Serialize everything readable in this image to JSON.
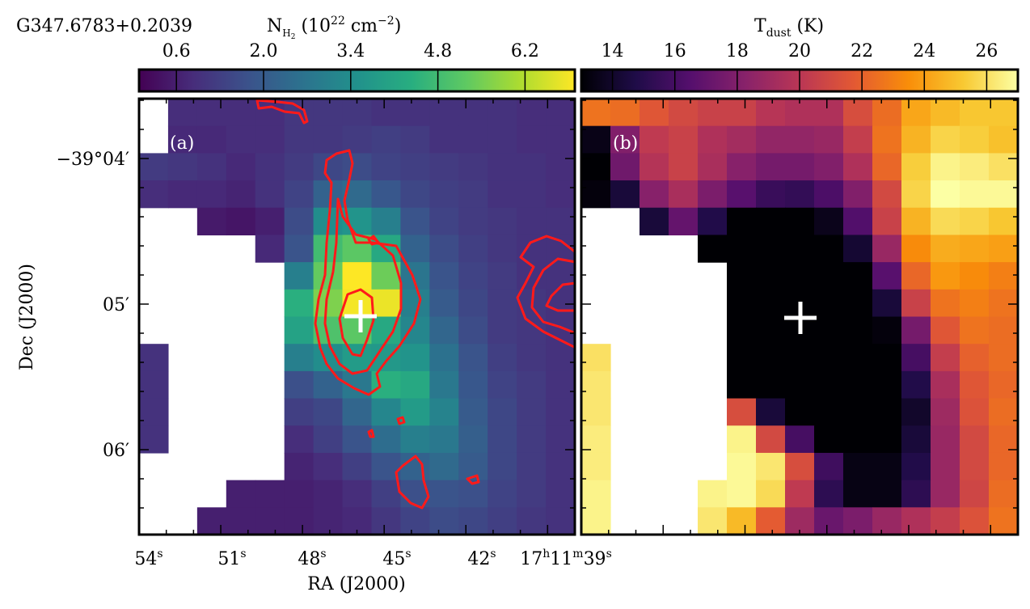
{
  "source_name": "G347.6783+0.2039",
  "chart_data": [
    {
      "type": "heatmap",
      "panel_label": "(a)",
      "quantity": "N_H2",
      "colorbar": {
        "label_main": "N",
        "label_sub": "H",
        "label_sub2": "2",
        "label_units_pre": " (10",
        "label_units_exp": "22",
        "label_units_mid": " cm",
        "label_units_exp2": "−2",
        "label_units_post": ")",
        "ticks": [
          "0.6",
          "2.0",
          "3.4",
          "4.8",
          "6.2"
        ],
        "tick_values": [
          0.6,
          2.0,
          3.4,
          4.8,
          6.2
        ],
        "range": [
          0.0,
          7.0
        ],
        "colormap": "viridis"
      },
      "xlabel": "RA (J2000)",
      "ylabel": "Dec (J2000)",
      "xticks": [
        {
          "main": "54",
          "sup": "s"
        },
        {
          "main": "51",
          "sup": "s"
        },
        {
          "main": "48",
          "sup": "s"
        },
        {
          "main": "45",
          "sup": "s"
        },
        {
          "main": "42",
          "sup": "s"
        },
        {
          "main": "17",
          "sup": "h",
          "main2": "11",
          "sup2": "m",
          "main3": "39",
          "sup3": "s"
        }
      ],
      "yticks": [
        {
          "main": "−39°04′"
        },
        {
          "main": "05′"
        },
        {
          "main": "06′"
        }
      ],
      "grid": [
        [
          null,
          0.9,
          0.9,
          0.9,
          0.9,
          1.1,
          1.1,
          1.1,
          1.0,
          1.0,
          1.0,
          1.0,
          1.0,
          0.9,
          0.9
        ],
        [
          null,
          0.8,
          0.8,
          0.9,
          0.9,
          1.1,
          1.1,
          1.2,
          1.3,
          1.2,
          1.0,
          1.0,
          1.0,
          0.9,
          0.9
        ],
        [
          1.2,
          1.1,
          1.0,
          0.8,
          1.0,
          1.2,
          1.5,
          1.6,
          1.4,
          1.3,
          1.2,
          1.1,
          1.0,
          1.0,
          0.9
        ],
        [
          0.9,
          0.8,
          0.8,
          0.7,
          1.0,
          1.4,
          2.2,
          2.4,
          1.9,
          1.5,
          1.3,
          1.2,
          1.0,
          1.0,
          0.9
        ],
        [
          null,
          null,
          0.5,
          0.4,
          0.6,
          1.6,
          3.4,
          3.6,
          3.0,
          1.8,
          1.4,
          1.2,
          1.1,
          1.0,
          1.0
        ],
        [
          null,
          null,
          null,
          null,
          0.8,
          1.8,
          4.8,
          5.2,
          4.2,
          2.2,
          1.6,
          1.3,
          1.1,
          1.0,
          1.0
        ],
        [
          null,
          null,
          null,
          null,
          null,
          3.0,
          5.3,
          7.0,
          5.4,
          2.7,
          1.8,
          1.4,
          1.2,
          1.0,
          1.0
        ],
        [
          null,
          null,
          null,
          null,
          null,
          4.4,
          5.6,
          6.9,
          6.8,
          3.0,
          2.0,
          1.5,
          1.2,
          1.1,
          1.0
        ],
        [
          null,
          null,
          null,
          null,
          null,
          4.0,
          5.0,
          5.2,
          4.2,
          3.2,
          2.3,
          1.6,
          1.2,
          1.1,
          1.0
        ],
        [
          1.0,
          null,
          null,
          null,
          null,
          3.0,
          3.4,
          3.8,
          3.7,
          3.6,
          2.6,
          1.8,
          1.3,
          1.1,
          1.0
        ],
        [
          1.0,
          null,
          null,
          null,
          null,
          1.7,
          2.2,
          2.8,
          4.4,
          4.2,
          2.8,
          1.9,
          1.4,
          1.2,
          1.0
        ],
        [
          1.0,
          null,
          null,
          null,
          null,
          1.3,
          1.5,
          2.3,
          3.2,
          3.8,
          3.1,
          2.0,
          1.5,
          1.2,
          1.0
        ],
        [
          1.0,
          null,
          null,
          null,
          null,
          0.9,
          1.3,
          1.8,
          2.5,
          3.0,
          2.8,
          2.1,
          1.5,
          1.2,
          1.0
        ],
        [
          null,
          null,
          null,
          null,
          null,
          0.7,
          0.9,
          1.3,
          1.8,
          2.2,
          2.4,
          2.0,
          1.5,
          1.2,
          1.0
        ],
        [
          null,
          null,
          null,
          0.6,
          0.6,
          0.6,
          0.7,
          0.9,
          1.3,
          1.7,
          1.8,
          1.7,
          1.4,
          1.2,
          1.0
        ],
        [
          null,
          null,
          0.6,
          0.6,
          0.6,
          0.6,
          0.7,
          0.8,
          1.1,
          1.4,
          1.6,
          1.5,
          1.3,
          1.1,
          1.0
        ]
      ],
      "contours": "red",
      "marker": "+"
    },
    {
      "type": "heatmap",
      "panel_label": "(b)",
      "quantity": "T_dust",
      "colorbar": {
        "label_main": "T",
        "label_sub": "dust",
        "label_units_post": " (K)",
        "ticks": [
          "14",
          "16",
          "18",
          "20",
          "22",
          "24",
          "26"
        ],
        "tick_values": [
          14,
          16,
          18,
          20,
          22,
          24,
          26
        ],
        "range": [
          13.0,
          27.0
        ],
        "colormap": "inferno"
      },
      "grid": [
        [
          22.6,
          22.4,
          21.6,
          21.0,
          20.6,
          20.6,
          19.9,
          19.6,
          19.6,
          21.2,
          22.4,
          24.2,
          24.8,
          25.2,
          25.2
        ],
        [
          13.5,
          18.0,
          20.2,
          20.6,
          19.6,
          19.2,
          18.6,
          18.6,
          18.8,
          20.4,
          22.6,
          24.6,
          25.6,
          25.4,
          25.0
        ],
        [
          13.0,
          17.4,
          19.8,
          20.6,
          19.4,
          18.2,
          17.6,
          17.6,
          18.0,
          19.6,
          22.2,
          25.4,
          26.6,
          26.4,
          26.0
        ],
        [
          13.2,
          14.4,
          18.2,
          19.4,
          17.8,
          16.6,
          15.6,
          15.4,
          16.2,
          18.0,
          21.0,
          25.6,
          27.0,
          26.8,
          26.8
        ],
        [
          null,
          null,
          14.4,
          17.0,
          14.8,
          13.0,
          13.0,
          13.0,
          13.6,
          16.4,
          20.6,
          24.6,
          25.8,
          25.6,
          25.2
        ],
        [
          null,
          null,
          null,
          null,
          13.0,
          13.0,
          13.0,
          13.0,
          13.0,
          14.2,
          18.8,
          23.4,
          24.4,
          24.2,
          24.0
        ],
        [
          null,
          null,
          null,
          null,
          null,
          13.0,
          13.0,
          13.0,
          13.0,
          13.0,
          16.6,
          22.2,
          23.8,
          23.4,
          23.0
        ],
        [
          null,
          null,
          null,
          null,
          null,
          13.0,
          13.0,
          13.0,
          13.0,
          13.0,
          14.4,
          20.6,
          22.6,
          23.0,
          22.6
        ],
        [
          null,
          null,
          null,
          null,
          null,
          13.0,
          13.0,
          13.0,
          13.0,
          13.0,
          13.2,
          17.6,
          21.6,
          22.6,
          22.4
        ],
        [
          26.0,
          null,
          null,
          null,
          null,
          13.0,
          13.0,
          13.0,
          13.0,
          13.0,
          13.0,
          16.0,
          20.4,
          22.0,
          22.4
        ],
        [
          26.2,
          null,
          null,
          null,
          null,
          13.0,
          13.0,
          13.0,
          13.0,
          13.0,
          13.0,
          14.8,
          19.4,
          21.6,
          22.2
        ],
        [
          26.2,
          null,
          null,
          null,
          null,
          21.2,
          14.4,
          13.0,
          13.0,
          13.0,
          13.0,
          14.0,
          19.0,
          21.4,
          22.4
        ],
        [
          26.4,
          null,
          null,
          null,
          null,
          26.6,
          21.0,
          16.0,
          13.0,
          13.0,
          13.0,
          14.4,
          18.8,
          21.0,
          22.2
        ],
        [
          26.4,
          null,
          null,
          null,
          null,
          26.8,
          26.2,
          21.2,
          15.8,
          13.4,
          13.4,
          14.8,
          18.8,
          21.0,
          22.2
        ],
        [
          26.6,
          null,
          null,
          null,
          26.6,
          26.8,
          25.8,
          20.2,
          15.2,
          13.4,
          13.4,
          15.2,
          18.8,
          20.8,
          22.4
        ],
        [
          26.6,
          null,
          null,
          null,
          26.2,
          24.8,
          21.8,
          19.0,
          17.2,
          17.8,
          18.8,
          19.6,
          20.4,
          21.4,
          22.6
        ]
      ],
      "marker": "+"
    }
  ]
}
